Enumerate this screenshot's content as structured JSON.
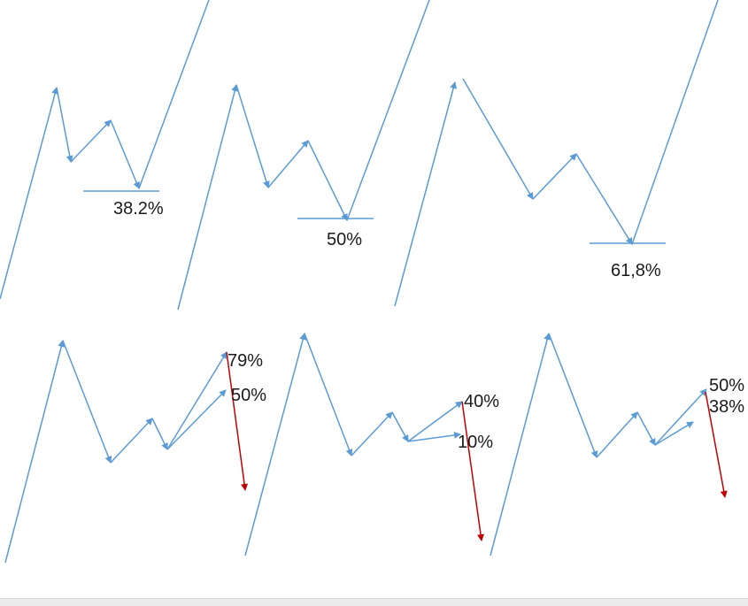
{
  "colors": {
    "wave": "#5b9bd5",
    "projection": "#c00000",
    "text": "#1a1a1a"
  },
  "labels": {
    "p1": "38.2%",
    "p2": "50%",
    "p3": "61,8%",
    "p4a": "79%",
    "p4b": "50%",
    "p5a": "40%",
    "p5b": "10%",
    "p6a": "50%",
    "p6b": "38%"
  }
}
